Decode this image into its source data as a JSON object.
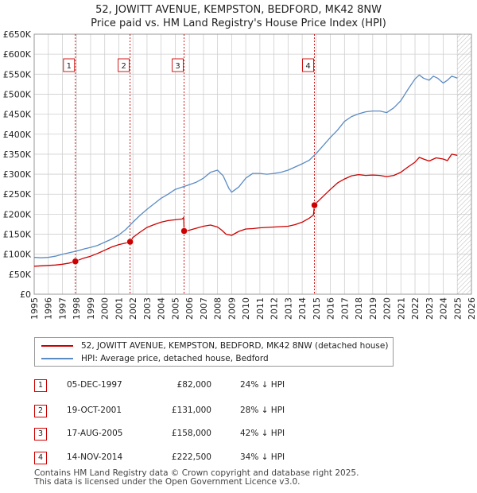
{
  "header": {
    "title_line1": "52, JOWITT AVENUE, KEMPSTON, BEDFORD, MK42 8NW",
    "title_line2": "Price paid vs. HM Land Registry's House Price Index (HPI)"
  },
  "colors": {
    "price_paid": "#cc0000",
    "hpi": "#5b8cc4",
    "vline": "#cc0000",
    "grid": "#cfcfcf",
    "badge_border": "#cc0000"
  },
  "legend": {
    "price_paid_label": "52, JOWITT AVENUE, KEMPSTON, BEDFORD, MK42 8NW (detached house)",
    "hpi_label": "HPI: Average price, detached house, Bedford"
  },
  "sales": [
    {
      "num": "1",
      "date": "05-DEC-1997",
      "price": "£82,000",
      "hpi_diff": "24% ↓ HPI"
    },
    {
      "num": "2",
      "date": "19-OCT-2001",
      "price": "£131,000",
      "hpi_diff": "28% ↓ HPI"
    },
    {
      "num": "3",
      "date": "17-AUG-2005",
      "price": "£158,000",
      "hpi_diff": "42% ↓ HPI"
    },
    {
      "num": "4",
      "date": "14-NOV-2014",
      "price": "£222,500",
      "hpi_diff": "34% ↓ HPI"
    }
  ],
  "footer": {
    "line1": "Contains HM Land Registry data © Crown copyright and database right 2025.",
    "line2": "This data is licensed under the Open Government Licence v3.0."
  },
  "chart_data": {
    "type": "line",
    "title": "52, JOWITT AVENUE, KEMPSTON, BEDFORD, MK42 8NW",
    "subtitle": "Price paid vs. HM Land Registry's House Price Index (HPI)",
    "xlabel": "",
    "ylabel": "",
    "xlim": [
      1995,
      2026
    ],
    "ylim": [
      0,
      650000
    ],
    "grid": true,
    "legend_position": "below",
    "x_ticks": [
      1995,
      1996,
      1997,
      1998,
      1999,
      2000,
      2001,
      2002,
      2003,
      2004,
      2005,
      2006,
      2007,
      2008,
      2009,
      2010,
      2011,
      2012,
      2013,
      2014,
      2015,
      2016,
      2017,
      2018,
      2019,
      2020,
      2021,
      2022,
      2023,
      2024,
      2025,
      2026
    ],
    "y_ticks": [
      0,
      50000,
      100000,
      150000,
      200000,
      250000,
      300000,
      350000,
      400000,
      450000,
      500000,
      550000,
      600000,
      650000
    ],
    "y_tick_labels": [
      "£0",
      "£50K",
      "£100K",
      "£150K",
      "£200K",
      "£250K",
      "£300K",
      "£350K",
      "£400K",
      "£450K",
      "£500K",
      "£550K",
      "£600K",
      "£650K"
    ],
    "sale_markers": [
      {
        "label": "1",
        "x": 1997.92,
        "y": 82000
      },
      {
        "label": "2",
        "x": 2001.8,
        "y": 131000
      },
      {
        "label": "3",
        "x": 2005.63,
        "y": 158000
      },
      {
        "label": "4",
        "x": 2014.87,
        "y": 222500
      }
    ],
    "hatch_from": 2025.0,
    "series": [
      {
        "name": "52, JOWITT AVENUE, KEMPSTON, BEDFORD, MK42 8NW (detached house)",
        "x": [
          1995.0,
          1995.5,
          1996.0,
          1996.5,
          1997.0,
          1997.5,
          1997.92,
          1998.2,
          1998.5,
          1999.0,
          1999.5,
          2000.0,
          2000.5,
          2001.0,
          2001.5,
          2001.8,
          2002.0,
          2002.5,
          2003.0,
          2003.5,
          2004.0,
          2004.5,
          2005.0,
          2005.5,
          2005.6,
          2005.63,
          2006.0,
          2006.5,
          2007.0,
          2007.5,
          2008.0,
          2008.3,
          2008.6,
          2009.0,
          2009.5,
          2010.0,
          2010.5,
          2011.0,
          2011.5,
          2012.0,
          2012.5,
          2013.0,
          2013.5,
          2014.0,
          2014.5,
          2014.8,
          2014.87,
          2015.0,
          2015.5,
          2016.0,
          2016.5,
          2017.0,
          2017.5,
          2018.0,
          2018.5,
          2019.0,
          2019.5,
          2020.0,
          2020.5,
          2021.0,
          2021.5,
          2022.0,
          2022.3,
          2022.6,
          2023.0,
          2023.5,
          2024.0,
          2024.3,
          2024.6,
          2025.0
        ],
        "y": [
          70000,
          71000,
          72000,
          73000,
          75000,
          78000,
          82000,
          86000,
          90000,
          95000,
          102000,
          110000,
          118000,
          124000,
          128000,
          131000,
          142000,
          155000,
          167000,
          174000,
          180000,
          184000,
          186000,
          188000,
          192000,
          158000,
          160000,
          165000,
          170000,
          173000,
          168000,
          160000,
          150000,
          147000,
          157000,
          163000,
          164000,
          166000,
          167000,
          168000,
          169000,
          170000,
          174000,
          180000,
          190000,
          198000,
          222500,
          228000,
          245000,
          262000,
          278000,
          288000,
          296000,
          299000,
          297000,
          298000,
          297000,
          294000,
          297000,
          305000,
          318000,
          330000,
          342000,
          338000,
          333000,
          341000,
          338000,
          334000,
          350000,
          347000
        ]
      },
      {
        "name": "HPI: Average price, detached house, Bedford",
        "x": [
          1995.0,
          1995.5,
          1996.0,
          1996.5,
          1997.0,
          1997.5,
          1998.0,
          1998.5,
          1999.0,
          1999.5,
          2000.0,
          2000.5,
          2001.0,
          2001.5,
          2002.0,
          2002.5,
          2003.0,
          2003.5,
          2004.0,
          2004.5,
          2005.0,
          2005.5,
          2006.0,
          2006.5,
          2007.0,
          2007.5,
          2008.0,
          2008.4,
          2008.8,
          2009.0,
          2009.5,
          2010.0,
          2010.5,
          2011.0,
          2011.5,
          2012.0,
          2012.5,
          2013.0,
          2013.5,
          2014.0,
          2014.5,
          2015.0,
          2015.5,
          2016.0,
          2016.5,
          2017.0,
          2017.5,
          2018.0,
          2018.5,
          2019.0,
          2019.5,
          2020.0,
          2020.5,
          2021.0,
          2021.5,
          2022.0,
          2022.3,
          2022.6,
          2023.0,
          2023.3,
          2023.6,
          2024.0,
          2024.3,
          2024.6,
          2025.0
        ],
        "y": [
          92000,
          91000,
          92000,
          95000,
          100000,
          104000,
          108000,
          113000,
          117000,
          122000,
          130000,
          138000,
          148000,
          162000,
          180000,
          197000,
          212000,
          226000,
          240000,
          250000,
          262000,
          268000,
          274000,
          280000,
          290000,
          305000,
          310000,
          296000,
          265000,
          255000,
          268000,
          290000,
          302000,
          302000,
          300000,
          302000,
          305000,
          310000,
          318000,
          326000,
          335000,
          352000,
          372000,
          392000,
          410000,
          432000,
          444000,
          451000,
          456000,
          458000,
          458000,
          454000,
          466000,
          484000,
          512000,
          538000,
          548000,
          540000,
          535000,
          545000,
          540000,
          528000,
          535000,
          545000,
          540000
        ]
      }
    ]
  }
}
